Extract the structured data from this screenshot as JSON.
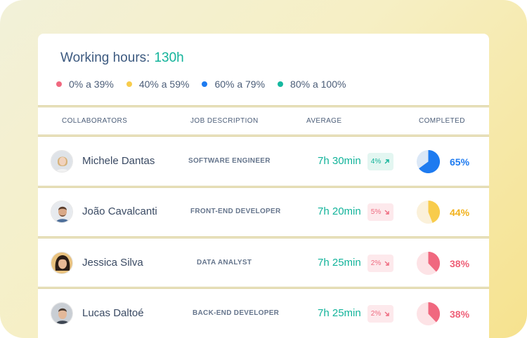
{
  "header": {
    "title_label": "Working hours:",
    "title_value": "130h"
  },
  "legend": [
    {
      "label": "0% a 39%",
      "color": "#f0687f"
    },
    {
      "label": "40% a 59%",
      "color": "#f8cc4c"
    },
    {
      "label": "60% a 79%",
      "color": "#1e7bf0"
    },
    {
      "label": "80% a 100%",
      "color": "#16b8a0"
    }
  ],
  "columns": [
    "COLLABORATORS",
    "JOB DESCRIPTION",
    "AVERAGE",
    "COMPLETED"
  ],
  "rows": [
    {
      "name": "Michele Dantas",
      "job": "SOFTWARE ENGINEER",
      "average": "7h 30min",
      "delta": "4%",
      "trend": "up",
      "completed": "65%",
      "completed_fraction": 0.65,
      "color": "#1e7bf0",
      "pie_bg": "#dbe8f7"
    },
    {
      "name": "João Cavalcanti",
      "job": "FRONT-END DEVELOPER",
      "average": "7h 20min",
      "delta": "5%",
      "trend": "down",
      "completed": "44%",
      "completed_fraction": 0.44,
      "color": "#f8cc4c",
      "pie_bg": "#fbf1da"
    },
    {
      "name": "Jessica Silva",
      "job": "DATA ANALYST",
      "average": "7h 25min",
      "delta": "2%",
      "trend": "down",
      "completed": "38%",
      "completed_fraction": 0.38,
      "color": "#f0687f",
      "pie_bg": "#fde3e6"
    },
    {
      "name": "Lucas Daltoé",
      "job": "BACK-END DEVELOPER",
      "average": "7h 25min",
      "delta": "2%",
      "trend": "down",
      "completed": "38%",
      "completed_fraction": 0.38,
      "color": "#f0687f",
      "pie_bg": "#fde3e6"
    }
  ]
}
